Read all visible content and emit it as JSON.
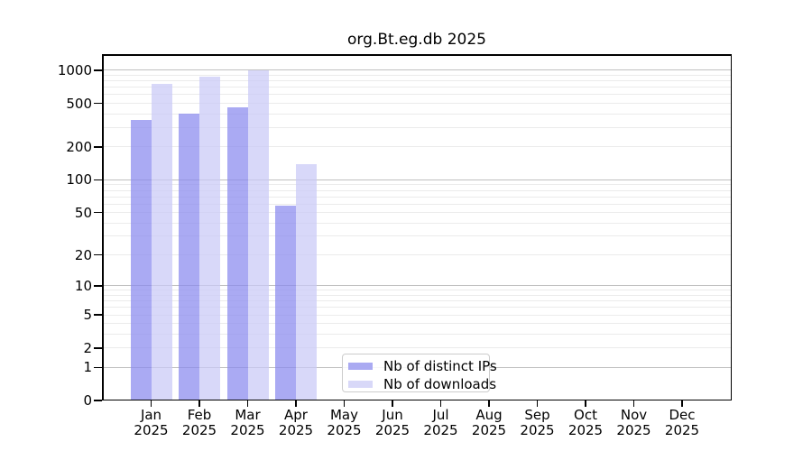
{
  "title": "org.Bt.eg.db 2025",
  "chart_data": {
    "type": "bar",
    "title": "org.Bt.eg.db 2025",
    "scale": "log1p",
    "categories": [
      "Jan",
      "Feb",
      "Mar",
      "Apr",
      "May",
      "Jun",
      "Jul",
      "Aug",
      "Sep",
      "Oct",
      "Nov",
      "Dec"
    ],
    "category_year": "2025",
    "series": [
      {
        "name": "Nb of distinct IPs",
        "color": "#8989ee",
        "alpha": 0.72,
        "legend_color": "#aaaaf2",
        "values": [
          350,
          400,
          460,
          58,
          null,
          null,
          null,
          null,
          null,
          null,
          null,
          null
        ]
      },
      {
        "name": "Nb of downloads",
        "color": "#c9c9f6",
        "alpha": 0.72,
        "legend_color": "#d8d8f8",
        "values": [
          750,
          880,
          1000,
          140,
          null,
          null,
          null,
          null,
          null,
          null,
          null,
          null
        ]
      }
    ],
    "yticks": [
      0,
      1,
      2,
      5,
      10,
      20,
      50,
      100,
      200,
      500,
      1000
    ],
    "ylim": [
      0,
      1400
    ],
    "xlabel": "",
    "ylabel": "",
    "grid": {
      "major_values": [
        1,
        10,
        100,
        1000
      ],
      "minor_values": [
        2,
        3,
        4,
        5,
        6,
        7,
        8,
        9,
        20,
        30,
        40,
        50,
        60,
        70,
        80,
        90,
        200,
        300,
        400,
        500,
        600,
        700,
        800,
        900
      ],
      "major_color": "#c0c0c0",
      "minor_color": "#ebebeb"
    },
    "legend_position": "bottom-center",
    "spine_color": "#000000",
    "background_color": "#ffffff"
  }
}
